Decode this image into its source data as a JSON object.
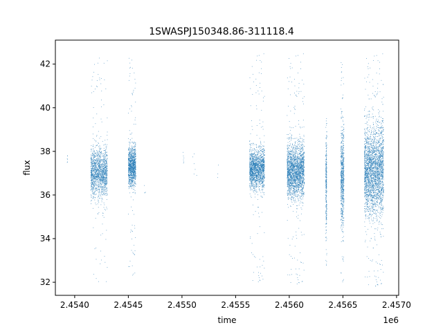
{
  "chart_data": {
    "type": "scatter",
    "title": "1SWASPJ150348.86-311118.4",
    "xlabel": "time",
    "ylabel": "flux",
    "x_offset_label": "1e6",
    "xlim": [
      2453820,
      2457020
    ],
    "ylim": [
      31.4,
      43.1
    ],
    "xticks": [
      2454000,
      2454500,
      2455000,
      2455500,
      2456000,
      2456500,
      2457000
    ],
    "xtick_labels": [
      "2.4540",
      "2.4545",
      "2.4550",
      "2.4555",
      "2.4560",
      "2.4565",
      "2.4570"
    ],
    "yticks": [
      32,
      34,
      36,
      38,
      40,
      42
    ],
    "ytick_labels": [
      "32",
      "34",
      "36",
      "38",
      "40",
      "42"
    ],
    "grid": false,
    "point_color": "#1f77b4",
    "point_size": "tiny",
    "point_density_note": "thousands of points; representative clusters listed",
    "series": [
      {
        "clusters": [
          {
            "x_range": [
              2453930,
              2453935
            ],
            "center": 37.6,
            "spread": 0.2,
            "y_min": 37.4,
            "y_max": 37.8,
            "count": 6
          },
          {
            "x_range": [
              2454150,
              2454305
            ],
            "center": 37.0,
            "spread": 0.55,
            "y_min": 32.0,
            "y_max": 42.3,
            "count": 1500
          },
          {
            "x_range": [
              2454500,
              2454570
            ],
            "center": 37.3,
            "spread": 0.45,
            "y_min": 32.2,
            "y_max": 42.5,
            "count": 1100
          },
          {
            "x_range": [
              2454650,
              2454660
            ],
            "center": 36.3,
            "spread": 0.2,
            "y_min": 36.1,
            "y_max": 36.5,
            "count": 4
          },
          {
            "x_range": [
              2455010,
              2455020
            ],
            "center": 37.6,
            "spread": 0.4,
            "y_min": 37.0,
            "y_max": 38.3,
            "count": 6
          },
          {
            "x_range": [
              2455100,
              2455140
            ],
            "center": 37.4,
            "spread": 0.4,
            "y_min": 36.9,
            "y_max": 38.0,
            "count": 6
          },
          {
            "x_range": [
              2455330,
              2455340
            ],
            "center": 37.1,
            "spread": 0.3,
            "y_min": 36.8,
            "y_max": 37.5,
            "count": 3
          },
          {
            "x_range": [
              2455630,
              2455770
            ],
            "center": 37.2,
            "spread": 0.45,
            "y_min": 31.9,
            "y_max": 42.5,
            "count": 1700
          },
          {
            "x_range": [
              2455980,
              2456140
            ],
            "center": 37.1,
            "spread": 0.6,
            "y_min": 31.8,
            "y_max": 42.5,
            "count": 2200
          },
          {
            "x_range": [
              2456340,
              2456350
            ],
            "center": 36.5,
            "spread": 1.2,
            "y_min": 32.7,
            "y_max": 39.5,
            "count": 300
          },
          {
            "x_range": [
              2456480,
              2456510
            ],
            "center": 36.8,
            "spread": 1.1,
            "y_min": 31.9,
            "y_max": 42.3,
            "count": 700
          },
          {
            "x_range": [
              2456700,
              2456880
            ],
            "center": 37.1,
            "spread": 1.0,
            "y_min": 31.7,
            "y_max": 42.5,
            "count": 2800
          }
        ]
      }
    ]
  }
}
